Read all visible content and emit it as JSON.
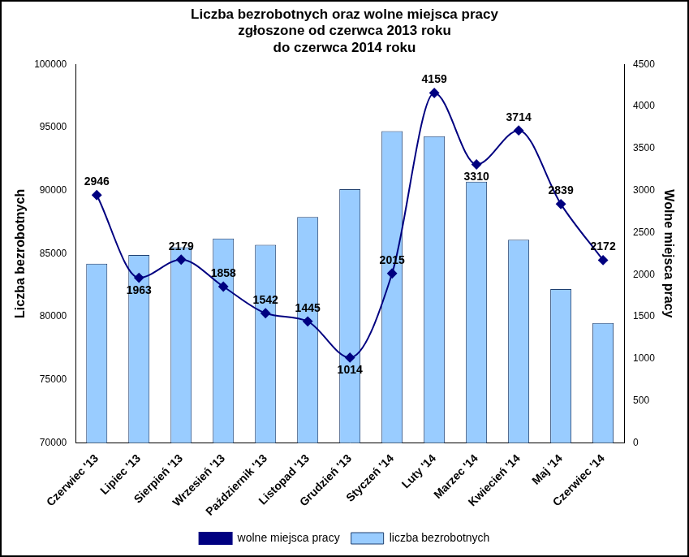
{
  "chart_data": {
    "type": "bar",
    "title": [
      "Liczba bezrobotnych oraz wolne miejsca pracy",
      "zgłoszone od czerwca 2013 roku",
      "do czerwca 2014 roku"
    ],
    "y_label": "Liczba bezrobotnych",
    "y2_label": "Wolne miejsca pracy",
    "categories": [
      "Czerwiec '13",
      "Lipiec '13",
      "Sierpień '13",
      "Wrzesień '13",
      "Październik '13",
      "Listopad '13",
      "Grudzień '13",
      "Styczeń '14",
      "Luty '14",
      "Marzec '14",
      "Kwiecień '14",
      "Maj '14",
      "Czerwiec '14"
    ],
    "series": [
      {
        "name": "liczba bezrobotnych",
        "type": "bar",
        "color": "#99ccff",
        "values": [
          84200,
          84900,
          85500,
          86200,
          85700,
          87900,
          90100,
          94700,
          94300,
          90700,
          86100,
          82200,
          79500
        ]
      },
      {
        "name": "wolne miejsca pracy",
        "type": "line",
        "axis": "y2",
        "color": "#000080",
        "marker": "diamond",
        "line_style": "solid",
        "data_labels": true,
        "values": [
          2946,
          1963,
          2179,
          1858,
          1542,
          1445,
          1014,
          2015,
          4159,
          3310,
          3714,
          2839,
          2172
        ]
      }
    ],
    "ylim": [
      70000,
      100000
    ],
    "yticks": [
      70000,
      75000,
      80000,
      85000,
      90000,
      95000,
      100000
    ],
    "y2lim": [
      0,
      4500
    ],
    "y2ticks": [
      0,
      500,
      1000,
      1500,
      2000,
      2500,
      3000,
      3500,
      4000,
      4500
    ],
    "grid": false,
    "legend": "bottom"
  }
}
